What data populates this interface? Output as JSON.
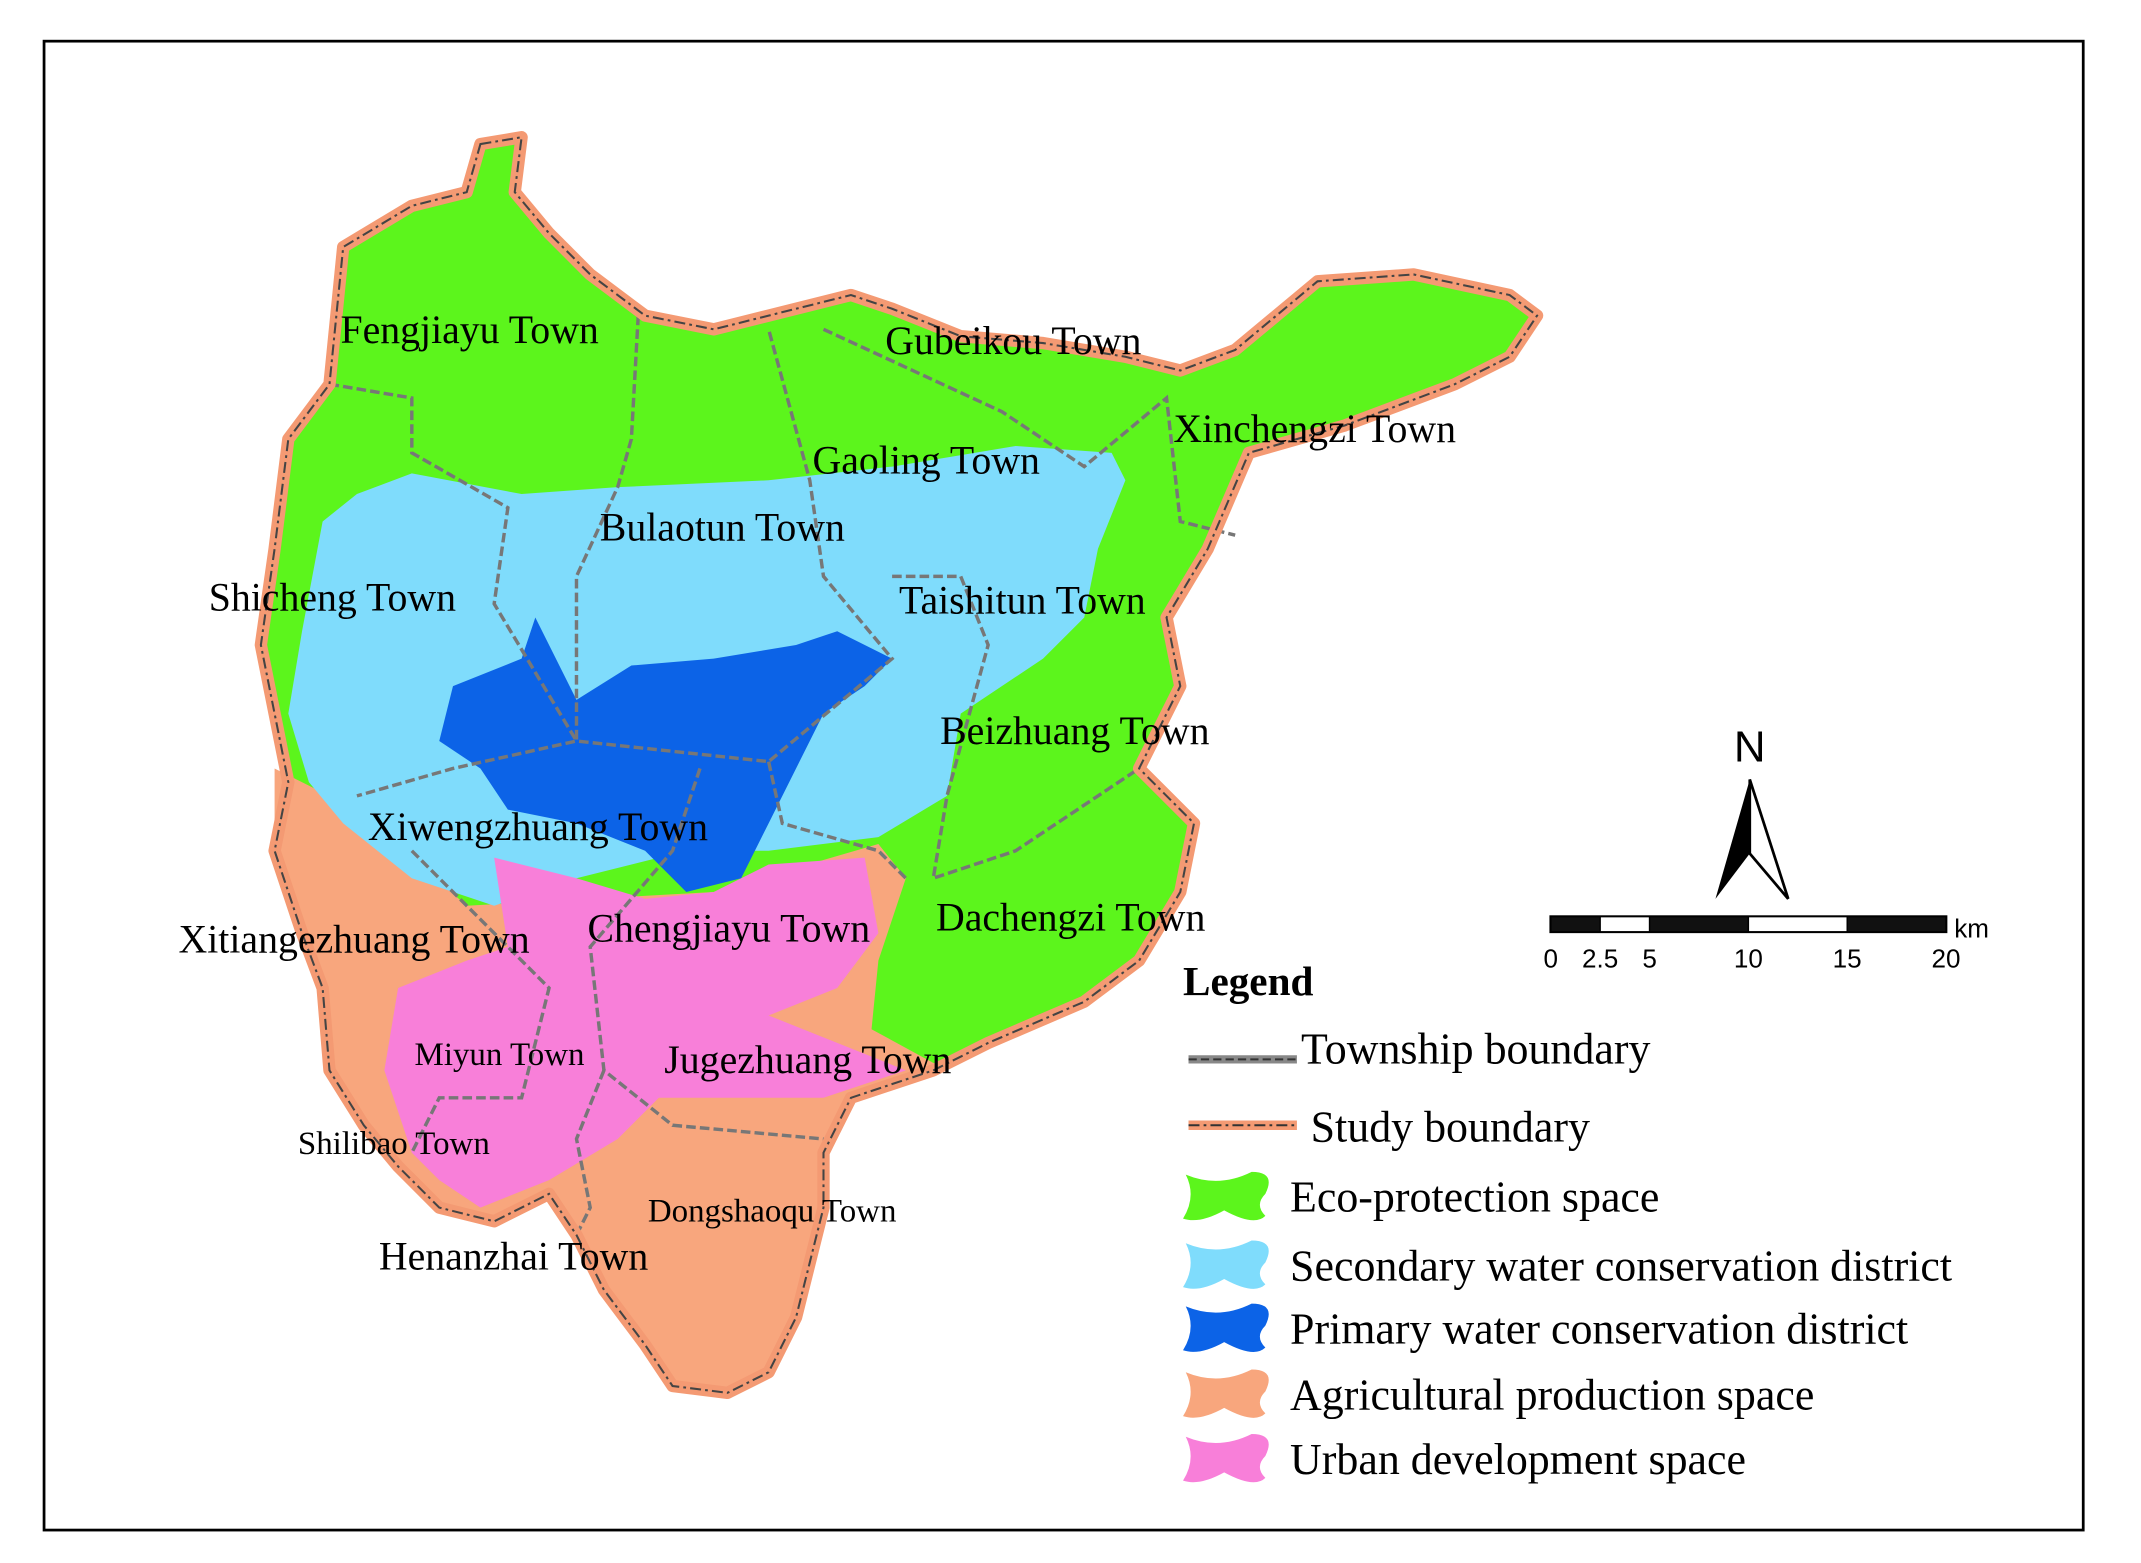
{
  "towns": [
    "Fengjiayu Town",
    "Gubeikou Town",
    "Xinchengzi Town",
    "Gaoling Town",
    "Bulaotun Town",
    "Shicheng Town",
    "Taishitun Town",
    "Beizhuang Town",
    "Xiwengzhuang Town",
    "Dachengzi Town",
    "Xitiangezhuang Town",
    "Chengjiayu Town",
    "Miyun Town",
    "Jugezhuang Town",
    "Shilibao Town",
    "Dongshaoqu Town",
    "Henanzhai Town"
  ],
  "legend": {
    "title": "Legend",
    "items": [
      "Township boundary",
      "Study boundary",
      "Eco-protection space",
      "Secondary water conservation district",
      "Primary water conservation district",
      "Agricultural production space",
      "Urban development space"
    ]
  },
  "north": "N",
  "scale": {
    "unit": "km",
    "range": [
      0,
      20
    ],
    "ticks": [
      0,
      2.5,
      5,
      10,
      15,
      20
    ]
  }
}
